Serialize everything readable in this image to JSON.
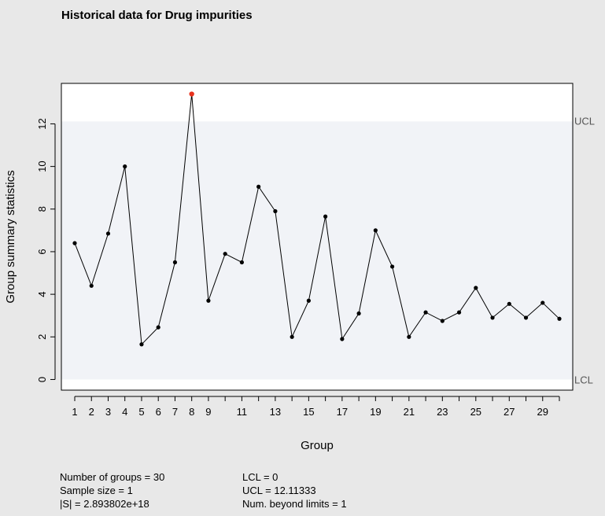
{
  "chart_data": {
    "type": "line",
    "title": "Historical data for Drug impurities",
    "xlabel": "Group",
    "ylabel": "Group summary statistics",
    "x": [
      1,
      2,
      3,
      4,
      5,
      6,
      7,
      8,
      9,
      10,
      11,
      12,
      13,
      14,
      15,
      16,
      17,
      18,
      19,
      20,
      21,
      22,
      23,
      24,
      25,
      26,
      27,
      28,
      29,
      30
    ],
    "values": [
      6.4,
      4.4,
      6.85,
      10.0,
      1.65,
      2.45,
      5.5,
      13.4,
      3.7,
      5.9,
      5.5,
      9.05,
      7.9,
      2.0,
      3.7,
      7.65,
      1.9,
      3.1,
      7.0,
      5.3,
      2.0,
      3.15,
      2.75,
      3.15,
      4.3,
      2.9,
      3.55,
      2.9,
      3.6,
      2.85
    ],
    "x_tick_labels": [
      "1",
      "2",
      "3",
      "4",
      "5",
      "6",
      "7",
      "8",
      "9",
      "11",
      "13",
      "15",
      "17",
      "19",
      "21",
      "23",
      "25",
      "27",
      "29"
    ],
    "y_ticks": [
      0,
      2,
      4,
      6,
      8,
      10,
      12
    ],
    "ylim": [
      -0.5,
      13.9
    ],
    "xlim": [
      0.2,
      30.8
    ],
    "ucl": 12.11333,
    "lcl": 0,
    "ucl_label": "UCL",
    "lcl_label": "LCL",
    "beyond_limit_color": "#e8321e",
    "point_color": "#000000",
    "in_control_band_color": "#f1f3f7"
  },
  "stats": {
    "col1": [
      "Number of groups = 30",
      "Sample size = 1",
      "|S| = 2.893802e+18"
    ],
    "col2": [
      "LCL = 0",
      "UCL = 12.11333",
      "Num. beyond limits = 1"
    ]
  }
}
